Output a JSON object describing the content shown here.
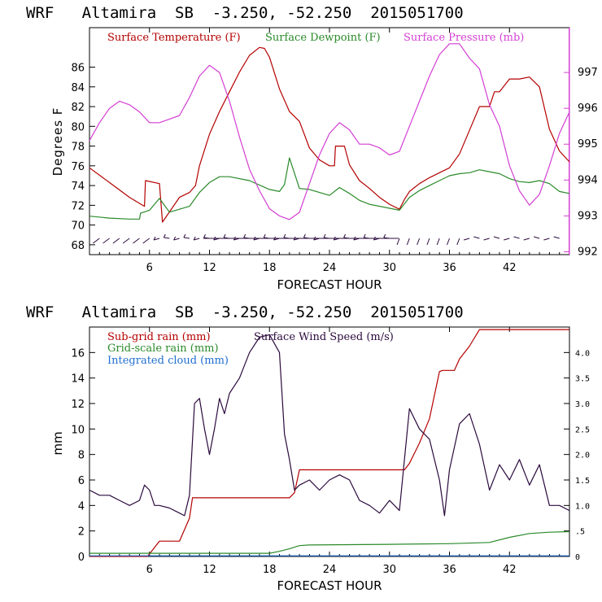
{
  "chart_data": [
    {
      "type": "line",
      "title": "WRF   Altamira  SB  -3.250, -52.250  2015051700",
      "xlabel": "FORECAST HOUR",
      "ylabel": "Degrees F",
      "y2label": "",
      "xlim": [
        0,
        48
      ],
      "ylim": [
        67,
        90
      ],
      "y2lim": [
        991.92,
        998.25
      ],
      "xticks": [
        6,
        12,
        18,
        24,
        30,
        36,
        42
      ],
      "xtick_labels": [
        "6",
        "12",
        "18",
        "24",
        "30",
        "36",
        "42"
      ],
      "yticks": [
        68,
        70,
        72,
        74,
        76,
        78,
        80,
        82,
        84,
        86
      ],
      "ytick_labels": [
        "68",
        "70",
        "72",
        "74",
        "76",
        "78",
        "80",
        "82",
        "84",
        "86"
      ],
      "y2ticks": [
        992,
        993,
        994,
        995,
        996,
        997
      ],
      "y2tick_labels": [
        "992",
        "993",
        "994",
        "995",
        "996",
        "997"
      ],
      "legend": [
        {
          "label": "Surface Temperature (F)",
          "color": "#b40000"
        },
        {
          "label": "Surface Dewpoint (F)",
          "color": "#2a8a2a"
        },
        {
          "label": "Surface Pressure (mb)",
          "color": "#d33fd3"
        }
      ],
      "series": [
        {
          "name": "Surface Temperature (F)",
          "axis": "left",
          "color": "#b40000",
          "x": [
            0,
            2,
            4,
            5.5,
            5.6,
            7,
            7.3,
            9,
            10,
            10.6,
            11,
            12,
            13,
            14,
            15,
            16,
            17,
            17.5,
            18,
            19,
            20,
            21,
            22,
            23,
            24,
            24.5,
            24.6,
            25.5,
            26,
            27,
            28,
            29,
            30,
            31,
            31.5,
            32,
            33,
            34,
            35,
            36,
            37,
            38,
            39,
            40,
            40.5,
            41,
            42,
            43,
            44,
            45,
            46,
            47,
            48
          ],
          "y": [
            75.8,
            74.3,
            72.8,
            71.9,
            74.5,
            74.2,
            70.3,
            72.8,
            73.3,
            74.0,
            76.0,
            79.2,
            81.5,
            83.5,
            85.5,
            87.2,
            88.0,
            87.9,
            87.0,
            83.8,
            81.5,
            80.5,
            77.8,
            76.6,
            76.0,
            76.0,
            78.0,
            78.0,
            76.1,
            74.5,
            73.7,
            72.8,
            72.1,
            71.6,
            72.6,
            73.4,
            74.2,
            74.8,
            75.3,
            75.8,
            77.2,
            79.6,
            82.0,
            82.0,
            83.5,
            83.5,
            84.8,
            84.8,
            85.0,
            84.0,
            79.7,
            77.5,
            76.4
          ]
        },
        {
          "name": "Surface Dewpoint (F)",
          "axis": "left",
          "color": "#2a8a2a",
          "x": [
            0,
            2,
            4,
            5,
            5.1,
            6,
            7,
            8,
            9,
            10,
            11,
            12,
            13,
            14,
            16,
            18,
            19,
            19.5,
            20,
            21,
            22,
            24,
            25,
            26,
            27,
            28,
            30,
            31,
            32,
            33,
            34,
            35,
            36,
            37,
            38,
            39,
            40,
            41,
            42,
            43,
            44,
            45,
            46,
            47,
            48
          ],
          "y": [
            70.9,
            70.7,
            70.6,
            70.6,
            71.2,
            71.5,
            72.7,
            71.3,
            71.6,
            71.9,
            73.3,
            74.3,
            74.9,
            74.9,
            74.5,
            73.6,
            73.4,
            74.1,
            76.8,
            73.7,
            73.6,
            73.0,
            73.8,
            73.2,
            72.5,
            72.1,
            71.7,
            71.5,
            72.8,
            73.5,
            74.0,
            74.5,
            75.0,
            75.2,
            75.3,
            75.6,
            75.4,
            75.2,
            74.7,
            74.4,
            74.3,
            74.5,
            74.2,
            73.4,
            73.2
          ]
        },
        {
          "name": "Surface Pressure (mb)",
          "axis": "right",
          "color": "#d33fd3",
          "x": [
            0,
            1,
            2,
            3,
            4,
            5,
            6,
            7,
            8,
            9,
            10,
            11,
            12,
            13,
            14,
            15,
            16,
            17,
            18,
            19,
            20,
            21,
            22,
            23,
            24,
            25,
            26,
            27,
            28,
            29,
            30,
            31,
            32,
            33,
            34,
            35,
            36,
            37,
            38,
            39,
            40,
            41,
            42,
            43,
            44,
            45,
            46,
            47,
            48
          ],
          "y": [
            995.1,
            995.6,
            996.0,
            996.2,
            996.1,
            995.9,
            995.6,
            995.6,
            995.7,
            995.8,
            996.3,
            996.9,
            997.2,
            997.0,
            996.2,
            995.2,
            994.3,
            993.7,
            993.2,
            993.0,
            992.9,
            993.1,
            993.9,
            994.7,
            995.3,
            995.6,
            995.4,
            995.0,
            995.0,
            994.9,
            994.7,
            994.8,
            995.5,
            996.2,
            996.9,
            997.5,
            997.8,
            997.8,
            997.4,
            997.1,
            996.1,
            995.5,
            994.4,
            993.7,
            993.3,
            993.6,
            994.4,
            995.3,
            995.9
          ]
        }
      ],
      "wind_barbs": "wind barbs along the bottom of the plot"
    },
    {
      "type": "line",
      "title": "WRF   Altamira  SB  -3.250, -52.250  2015051700",
      "xlabel": "FORECAST HOUR",
      "ylabel": "mm",
      "xlim": [
        0,
        48
      ],
      "ylim": [
        0,
        18
      ],
      "y2lim": [
        0,
        4.5
      ],
      "xticks": [
        6,
        12,
        18,
        24,
        30,
        36,
        42
      ],
      "xtick_labels": [
        "6",
        "12",
        "18",
        "24",
        "30",
        "36",
        "42"
      ],
      "yticks": [
        0,
        2,
        4,
        6,
        8,
        10,
        12,
        14,
        16
      ],
      "ytick_labels": [
        "0",
        "2",
        "4",
        "6",
        "8",
        "10",
        "12",
        "14",
        "16"
      ],
      "y2ticks": [
        0,
        0.5,
        1.0,
        1.5,
        2.0,
        2.5,
        3.0,
        3.5,
        4.0
      ],
      "y2tick_labels": [
        "0",
        ".5",
        "1.0",
        "1.5",
        "2.0",
        "2.5",
        "3.0",
        "3.5",
        "4.0"
      ],
      "legend": [
        {
          "label": "Sub-grid rain (mm)",
          "color": "#b40000"
        },
        {
          "label": "Surface Wind Speed (m/s)",
          "color": "#2b0a3d"
        },
        {
          "label": "Grid-scale rain (mm)",
          "color": "#2a8a2a"
        },
        {
          "label": "Integrated cloud (mm)",
          "color": "#1f6fd0"
        }
      ],
      "series": [
        {
          "name": "Sub-grid rain (mm)",
          "axis": "left",
          "color": "#b40000",
          "x": [
            0,
            5.8,
            7,
            9,
            10,
            10.3,
            20,
            20.5,
            21,
            31.5,
            32,
            33,
            34,
            35,
            35.3,
            36.5,
            37,
            38,
            39,
            48
          ],
          "y": [
            0,
            0,
            1.2,
            1.2,
            3.0,
            4.6,
            4.6,
            5.0,
            6.8,
            6.8,
            7.3,
            8.9,
            10.8,
            14.5,
            14.6,
            14.6,
            15.5,
            16.5,
            17.8,
            17.8
          ]
        },
        {
          "name": "Grid-scale rain (mm)",
          "axis": "left",
          "color": "#2a8a2a",
          "x": [
            0,
            18,
            19,
            20,
            21,
            22,
            30,
            36,
            40,
            42,
            44,
            46,
            48
          ],
          "y": [
            0.25,
            0.25,
            0.4,
            0.6,
            0.85,
            0.9,
            0.95,
            1.0,
            1.1,
            1.5,
            1.8,
            1.9,
            1.95
          ]
        },
        {
          "name": "Integrated cloud (mm)",
          "axis": "left",
          "color": "#1f6fd0",
          "x": [
            0,
            48
          ],
          "y": [
            0.05,
            0.05
          ]
        },
        {
          "name": "Surface Wind Speed (m/s)",
          "axis": "right",
          "color": "#2b0a3d",
          "x": [
            0,
            1,
            2,
            3,
            4,
            5,
            5.5,
            6,
            6.5,
            7,
            8,
            9,
            9.5,
            10,
            10.5,
            11,
            11.5,
            12,
            12.5,
            13,
            13.5,
            14,
            15,
            16,
            17,
            18,
            19,
            19.5,
            20,
            20.5,
            21,
            22,
            23,
            24,
            25,
            26,
            27,
            28,
            29,
            30,
            31,
            32,
            33,
            34,
            35,
            35.5,
            36,
            37,
            38,
            39,
            40,
            41,
            42,
            43,
            44,
            45,
            46,
            47,
            48
          ],
          "y": [
            1.3,
            1.2,
            1.2,
            1.1,
            1.0,
            1.1,
            1.4,
            1.3,
            1.0,
            1.0,
            0.95,
            0.85,
            0.8,
            1.2,
            3.0,
            3.1,
            2.5,
            2.0,
            2.5,
            3.1,
            2.8,
            3.2,
            3.5,
            4.0,
            4.3,
            4.35,
            4.0,
            2.4,
            1.9,
            1.3,
            1.4,
            1.5,
            1.3,
            1.5,
            1.6,
            1.5,
            1.1,
            1.0,
            0.85,
            1.1,
            0.9,
            2.9,
            2.5,
            2.3,
            1.5,
            0.8,
            1.7,
            2.6,
            2.8,
            2.2,
            1.3,
            1.8,
            1.5,
            1.9,
            1.4,
            1.8,
            1.0,
            1.0,
            0.9
          ]
        }
      ]
    }
  ]
}
